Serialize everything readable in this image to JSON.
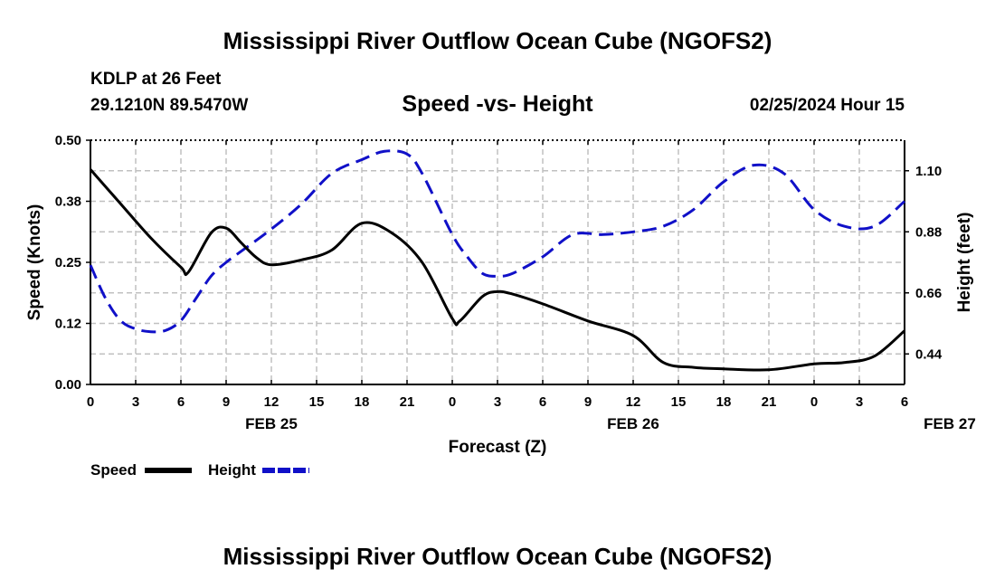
{
  "chart_data": {
    "type": "line",
    "title": "Mississippi River Outflow Ocean Cube (NGOFS2)",
    "footer_title": "Mississippi River Outflow Ocean Cube (NGOFS2)",
    "station": "KDLP at 26 Feet",
    "coordinates": "29.1210N  89.5470W",
    "subtitle": "Speed -vs- Height",
    "timestamp": "02/25/2024 Hour 15",
    "xlabel": "Forecast (Z)",
    "ylabel_left": "Speed (Knots)",
    "ylabel_right": "Height (feet)",
    "x_ticks": [
      "0",
      "3",
      "6",
      "9",
      "12",
      "15",
      "18",
      "21",
      "0",
      "3",
      "6",
      "9",
      "12",
      "15",
      "18",
      "21",
      "0",
      "3",
      "6"
    ],
    "date_labels": [
      {
        "label": "FEB 25",
        "hour": 12
      },
      {
        "label": "FEB 26",
        "hour": 36
      },
      {
        "label": "FEB 27",
        "hour": 57
      }
    ],
    "xlim": [
      0,
      54
    ],
    "ylim_left": [
      0.0,
      0.5
    ],
    "yticks_left": [
      "0.00",
      "0.12",
      "0.25",
      "0.38",
      "0.50"
    ],
    "ylim_right": [
      0.33,
      1.21
    ],
    "yticks_right": [
      "0.44",
      "0.66",
      "0.88",
      "1.10"
    ],
    "grid": true,
    "series": [
      {
        "name": "Speed",
        "color": "#000000",
        "style": "solid",
        "hours": [
          0,
          2,
          4,
          6,
          6.5,
          8,
          9,
          10,
          11,
          12,
          14,
          16,
          18,
          20,
          22,
          24,
          24.5,
          26,
          27,
          28,
          30,
          33,
          36,
          38,
          40,
          42,
          45,
          48,
          50,
          52,
          54
        ],
        "values": [
          0.44,
          0.37,
          0.3,
          0.24,
          0.23,
          0.31,
          0.32,
          0.29,
          0.26,
          0.245,
          0.255,
          0.275,
          0.33,
          0.31,
          0.25,
          0.135,
          0.13,
          0.18,
          0.19,
          0.185,
          0.165,
          0.13,
          0.1,
          0.045,
          0.035,
          0.032,
          0.03,
          0.042,
          0.045,
          0.058,
          0.11
        ]
      },
      {
        "name": "Height",
        "color": "#1010c8",
        "style": "dashed",
        "hours": [
          0,
          1,
          2,
          3,
          4,
          5,
          6,
          7,
          8,
          9,
          10,
          12,
          14,
          16,
          18,
          19.5,
          21,
          22,
          24,
          25,
          26,
          27,
          28,
          30,
          32,
          34,
          36,
          38,
          40,
          42,
          44,
          46,
          48,
          50,
          52,
          54
        ],
        "values": [
          0.76,
          0.64,
          0.56,
          0.53,
          0.52,
          0.525,
          0.56,
          0.64,
          0.72,
          0.77,
          0.81,
          0.89,
          0.98,
          1.09,
          1.14,
          1.17,
          1.16,
          1.09,
          0.87,
          0.79,
          0.73,
          0.72,
          0.73,
          0.79,
          0.87,
          0.87,
          0.88,
          0.9,
          0.96,
          1.06,
          1.12,
          1.09,
          0.96,
          0.9,
          0.9,
          0.99
        ]
      }
    ],
    "legend": {
      "speed_label": "Speed",
      "height_label": "Height"
    }
  }
}
